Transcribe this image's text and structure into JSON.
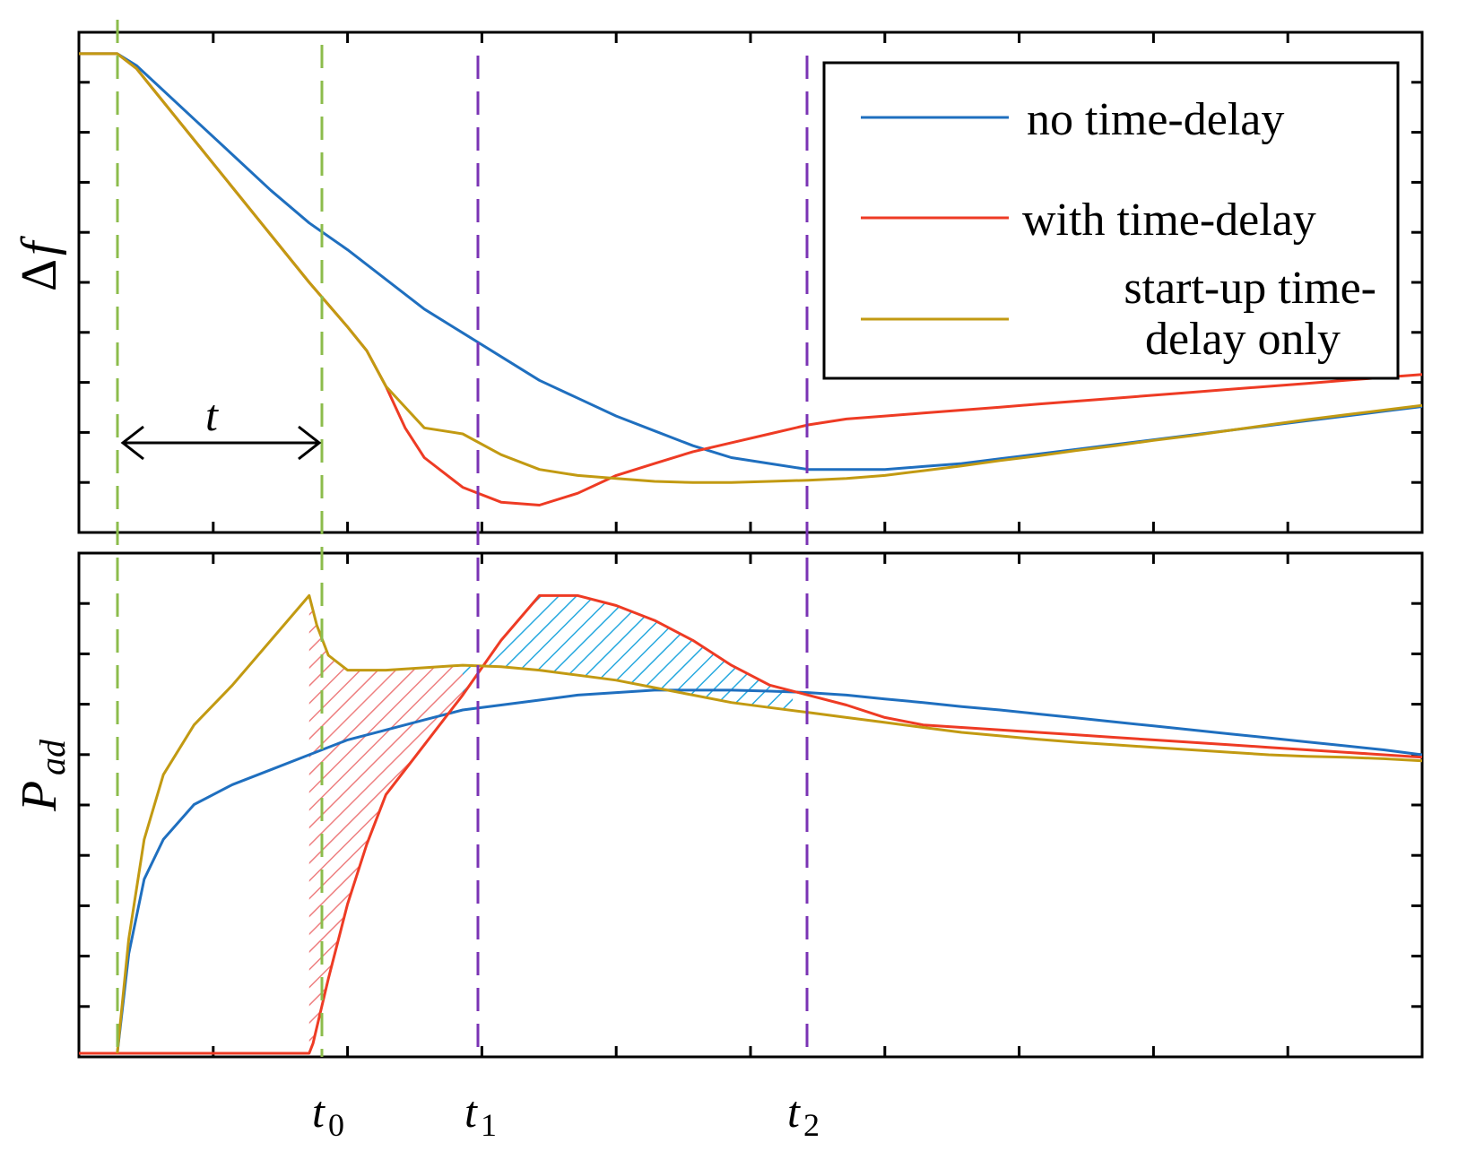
{
  "colors": {
    "no_delay": "#1f6fbf",
    "with_delay": "#ee3b24",
    "startup_delay": "#c29a12",
    "green_guides": "#8cbc4c",
    "purple_guides": "#7a33b4",
    "red_hatch": "#ee7f80",
    "blue_hatch": "#27a9df"
  },
  "chart_data": [
    {
      "type": "line",
      "panel": "top",
      "ylabel": "Δ f",
      "xlabel": "",
      "x_tick_labels": [],
      "series": [
        {
          "name": "no time-delay",
          "color": "#1f6fbf",
          "x": [
            0,
            0.5,
            1,
            1.5,
            2,
            3,
            4,
            5,
            6,
            7,
            8,
            9,
            10,
            11,
            12,
            13,
            14,
            15,
            16,
            17,
            18,
            19,
            20,
            21,
            22,
            23,
            24,
            25,
            26,
            27,
            28,
            29,
            30,
            31,
            32,
            33,
            34,
            35
          ],
          "y": [
            1.0,
            1.0,
            1.0,
            0.98,
            0.95,
            0.89,
            0.83,
            0.77,
            0.715,
            0.67,
            0.62,
            0.57,
            0.53,
            0.49,
            0.45,
            0.42,
            0.39,
            0.365,
            0.34,
            0.32,
            0.31,
            0.3,
            0.3,
            0.3,
            0.305,
            0.31,
            0.318,
            0.326,
            0.334,
            0.342,
            0.35,
            0.358,
            0.366,
            0.374,
            0.382,
            0.39,
            0.398,
            0.406
          ]
        },
        {
          "name": "with time-delay",
          "color": "#ee3b24",
          "x": [
            0,
            0.5,
            1,
            1.5,
            2,
            3,
            4,
            5,
            6,
            7,
            7.5,
            8,
            8.5,
            9,
            10,
            11,
            12,
            13,
            14,
            15,
            16,
            17,
            18,
            19,
            20,
            21,
            22,
            23,
            24,
            25,
            26,
            27,
            28,
            29,
            30,
            31,
            32,
            33,
            34,
            35
          ],
          "y": [
            1.0,
            1.0,
            1.0,
            0.975,
            0.935,
            0.855,
            0.775,
            0.695,
            0.615,
            0.54,
            0.5,
            0.44,
            0.37,
            0.32,
            0.27,
            0.245,
            0.24,
            0.26,
            0.29,
            0.31,
            0.33,
            0.345,
            0.36,
            0.375,
            0.385,
            0.39,
            0.395,
            0.4,
            0.405,
            0.41,
            0.415,
            0.42,
            0.425,
            0.43,
            0.435,
            0.44,
            0.445,
            0.45,
            0.455,
            0.46
          ]
        },
        {
          "name": "start-up time-delay only",
          "color": "#c29a12",
          "x": [
            0,
            0.5,
            1,
            1.5,
            2,
            3,
            4,
            5,
            6,
            7,
            7.5,
            8,
            9,
            10,
            11,
            12,
            13,
            14,
            15,
            16,
            17,
            18,
            19,
            20,
            21,
            22,
            23,
            24,
            25,
            26,
            27,
            28,
            29,
            30,
            31,
            32,
            33,
            34,
            35
          ],
          "y": [
            1.0,
            1.0,
            1.0,
            0.975,
            0.935,
            0.855,
            0.775,
            0.695,
            0.615,
            0.54,
            0.5,
            0.44,
            0.37,
            0.36,
            0.325,
            0.3,
            0.29,
            0.285,
            0.28,
            0.278,
            0.278,
            0.28,
            0.282,
            0.285,
            0.29,
            0.298,
            0.306,
            0.315,
            0.323,
            0.332,
            0.34,
            0.349,
            0.357,
            0.366,
            0.375,
            0.384,
            0.392,
            0.4,
            0.408
          ]
        }
      ]
    },
    {
      "type": "line",
      "panel": "bottom",
      "ylabel": "Pad",
      "xlabel": "",
      "x_tick_labels": [
        "t0",
        "t1",
        "t2"
      ],
      "series": [
        {
          "name": "no time-delay",
          "color": "#1f6fbf",
          "x": [
            1,
            1.3,
            1.7,
            2.2,
            3,
            4,
            5,
            6,
            7,
            8,
            9,
            10,
            11,
            12,
            13,
            14,
            15,
            16,
            17,
            18,
            19,
            20,
            21,
            22,
            23,
            24,
            25,
            26,
            27,
            28,
            29,
            30,
            31,
            32,
            33,
            34,
            35
          ],
          "y": [
            0.0,
            0.2,
            0.35,
            0.43,
            0.5,
            0.54,
            0.57,
            0.6,
            0.63,
            0.65,
            0.67,
            0.69,
            0.7,
            0.71,
            0.72,
            0.725,
            0.73,
            0.73,
            0.73,
            0.728,
            0.725,
            0.72,
            0.712,
            0.705,
            0.697,
            0.69,
            0.682,
            0.674,
            0.666,
            0.658,
            0.65,
            0.642,
            0.634,
            0.626,
            0.618,
            0.61,
            0.6
          ]
        },
        {
          "name": "with time-delay",
          "color": "#ee3b24",
          "x": [
            0,
            1,
            2,
            3,
            4,
            5,
            6,
            6.1,
            6.5,
            7,
            7.5,
            8,
            9,
            10,
            11,
            12,
            13,
            14,
            15,
            16,
            17,
            18,
            19,
            20,
            21,
            22,
            23,
            24,
            25,
            26,
            27,
            28,
            29,
            30,
            31,
            32,
            33,
            34,
            35
          ],
          "y": [
            0.0,
            0.0,
            0.0,
            0.0,
            0.0,
            0.0,
            0.0,
            0.02,
            0.15,
            0.3,
            0.42,
            0.52,
            0.62,
            0.72,
            0.83,
            0.92,
            0.92,
            0.9,
            0.87,
            0.83,
            0.78,
            0.74,
            0.72,
            0.7,
            0.675,
            0.66,
            0.655,
            0.65,
            0.645,
            0.64,
            0.635,
            0.63,
            0.625,
            0.62,
            0.615,
            0.61,
            0.605,
            0.6,
            0.595
          ]
        },
        {
          "name": "start-up time-delay only",
          "color": "#c29a12",
          "x": [
            1,
            1.3,
            1.7,
            2.2,
            3,
            4,
            5,
            6,
            6.2,
            6.5,
            7,
            8,
            9,
            10,
            11,
            12,
            13,
            14,
            15,
            16,
            17,
            18,
            19,
            20,
            21,
            22,
            23,
            24,
            25,
            26,
            27,
            28,
            29,
            30,
            31,
            32,
            33,
            34,
            35
          ],
          "y": [
            0.0,
            0.23,
            0.43,
            0.56,
            0.66,
            0.74,
            0.83,
            0.92,
            0.86,
            0.8,
            0.77,
            0.77,
            0.775,
            0.78,
            0.777,
            0.77,
            0.76,
            0.75,
            0.735,
            0.72,
            0.705,
            0.695,
            0.685,
            0.675,
            0.665,
            0.655,
            0.645,
            0.638,
            0.631,
            0.625,
            0.62,
            0.615,
            0.61,
            0.605,
            0.6,
            0.597,
            0.595,
            0.592,
            0.588
          ]
        }
      ]
    }
  ],
  "legend": {
    "items": [
      {
        "label": "no time-delay",
        "color": "#1f6fbf"
      },
      {
        "label": "with time-delay",
        "color": "#ee3b24"
      },
      {
        "label_lines": [
          "start-up time-",
          "delay only"
        ],
        "color": "#c29a12"
      }
    ]
  },
  "annotations": {
    "t_label": "t",
    "x_ticks": {
      "t0": "t",
      "t0_sub": "0",
      "t1": "t",
      "t1_sub": "1",
      "t2": "t",
      "t2_sub": "2"
    },
    "ylabel_top_delta": "Δ",
    "ylabel_top_f": "f",
    "ylabel_bottom_P": "P",
    "ylabel_bottom_sub": "ad"
  }
}
